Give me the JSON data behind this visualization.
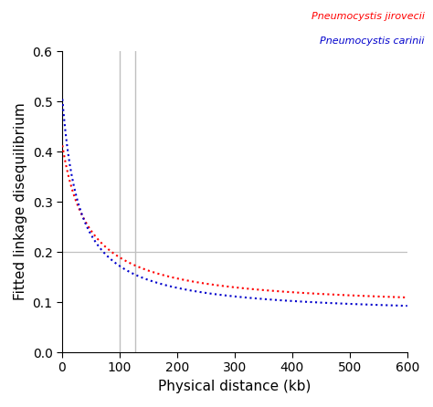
{
  "title": "",
  "xlabel": "Physical distance (kb)",
  "ylabel": "Fitted linkage disequilibrium",
  "xlim": [
    0,
    600
  ],
  "ylim": [
    0.0,
    0.6
  ],
  "x_ticks": [
    0,
    100,
    200,
    300,
    400,
    500,
    600
  ],
  "y_ticks": [
    0.0,
    0.1,
    0.2,
    0.3,
    0.4,
    0.5,
    0.6
  ],
  "vline1": 100,
  "vline2": 127,
  "hline": 0.2,
  "vline_color": "#c0c0c0",
  "hline_color": "#c0c0c0",
  "red_label": "Pneumocystis jirovecii",
  "blue_label": "Pneumocystis carinii",
  "red_color": "#ff0000",
  "blue_color": "#0000cc",
  "background_color": "#ffffff",
  "figsize": [
    4.74,
    4.46
  ],
  "dpi": 100,
  "red_C": 0.33,
  "red_r": 0.022,
  "red_floor": 0.086,
  "blue_C": 0.44,
  "blue_r": 0.034,
  "blue_floor": 0.072
}
